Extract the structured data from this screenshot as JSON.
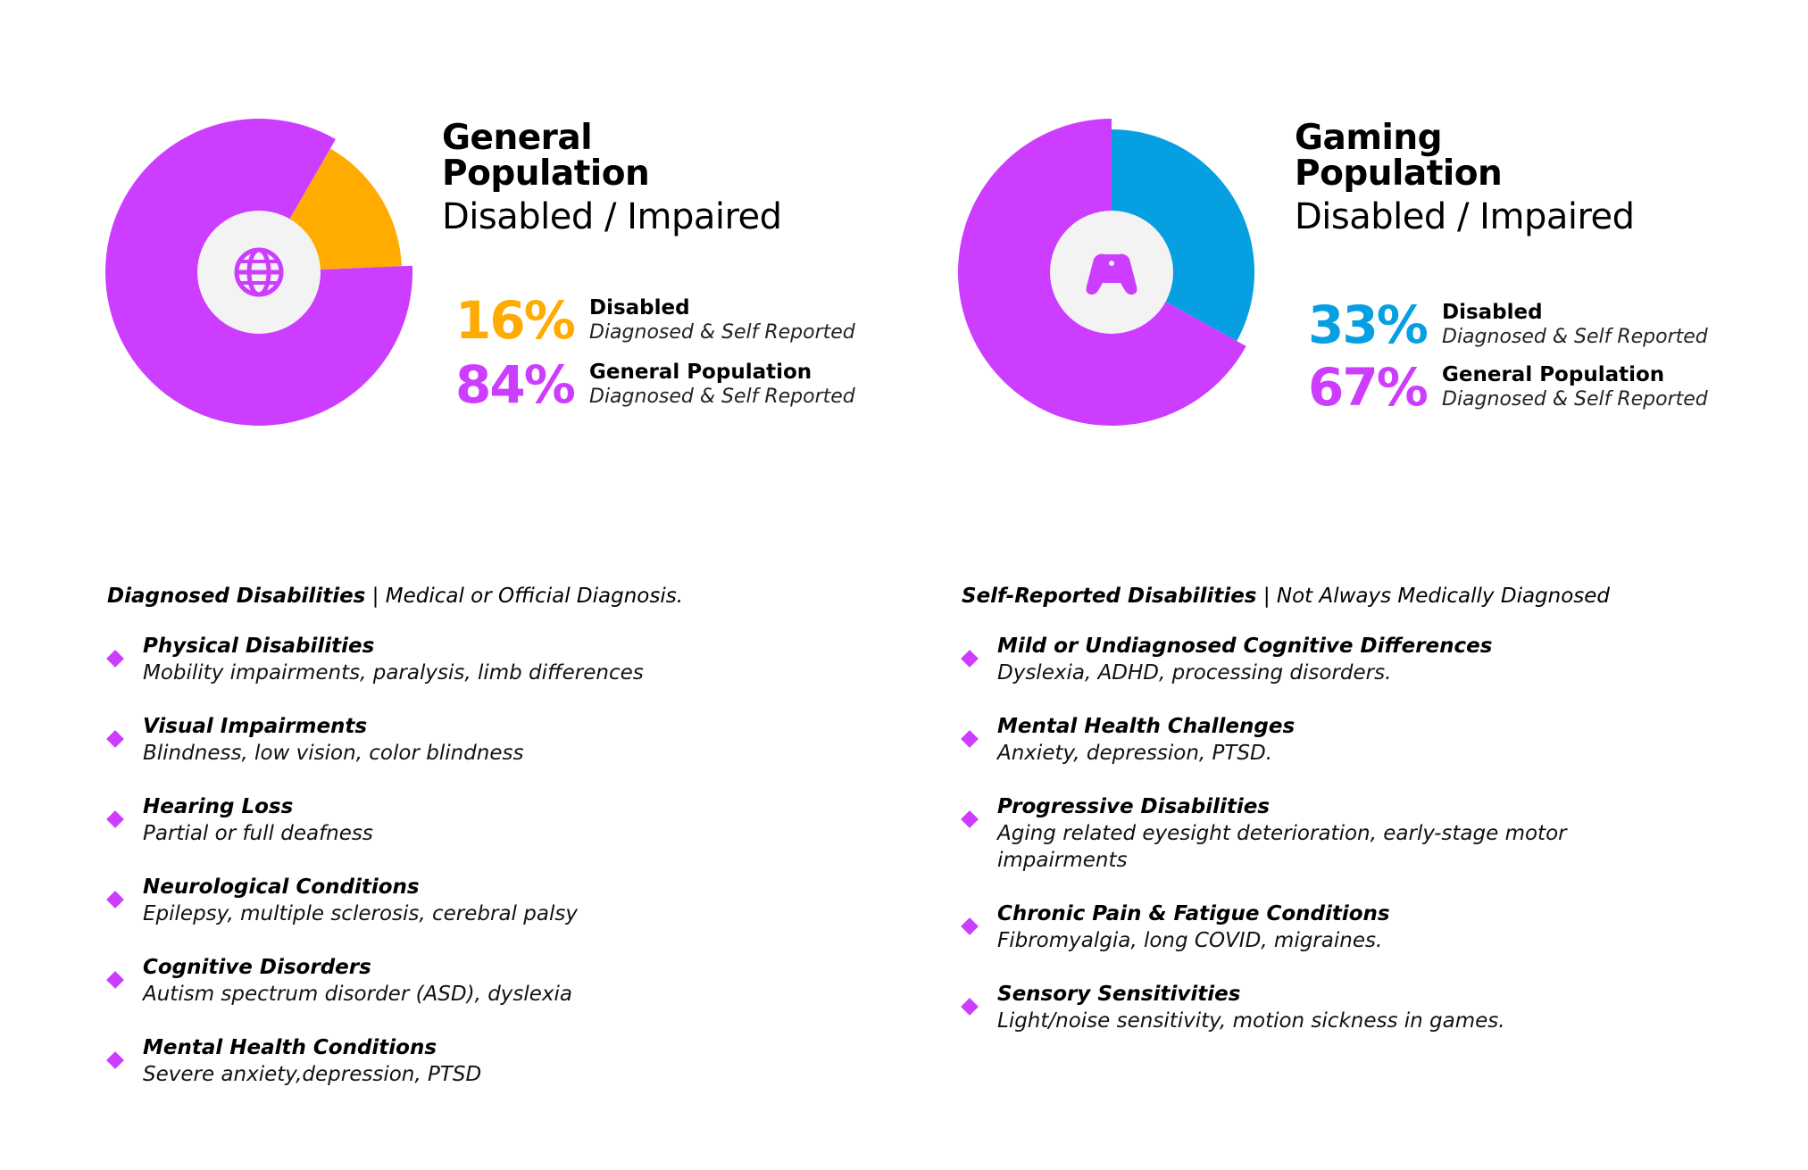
{
  "colors": {
    "purple": "#cc3dff",
    "orange": "#ffab00",
    "blue": "#06a0e2",
    "center": "#f3f3f3"
  },
  "chart_data": [
    {
      "type": "pie",
      "title_line1": "General",
      "title_line2": "Population",
      "subtitle": "Disabled / Impaired",
      "icon": "globe-icon",
      "categories": [
        "Disabled",
        "General Population"
      ],
      "values": [
        16,
        84
      ],
      "pct_labels": [
        "16%",
        "84%"
      ],
      "descriptions": [
        "Diagnosed & Self Reported",
        "Diagnosed & Self Reported"
      ],
      "colors": [
        "#ffab00",
        "#cc3dff"
      ]
    },
    {
      "type": "pie",
      "title_line1": "Gaming",
      "title_line2": "Population",
      "subtitle": "Disabled / Impaired",
      "icon": "gamepad-icon",
      "categories": [
        "Disabled",
        "General Population"
      ],
      "values": [
        33,
        67
      ],
      "pct_labels": [
        "33%",
        "67%"
      ],
      "descriptions": [
        "Diagnosed & Self Reported",
        "Diagnosed & Self Reported"
      ],
      "colors": [
        "#06a0e2",
        "#cc3dff"
      ]
    }
  ],
  "lists": {
    "diagnosed": {
      "header_bold": "Diagnosed Disabilities",
      "header_rest": " | Medical or Official Diagnosis.",
      "items": [
        {
          "title": "Physical Disabilities",
          "desc": "Mobility impairments, paralysis, limb differences"
        },
        {
          "title": "Visual Impairments",
          "desc": "Blindness, low vision, color blindness"
        },
        {
          "title": "Hearing Loss",
          "desc": "Partial or full deafness"
        },
        {
          "title": "Neurological Conditions",
          "desc": "Epilepsy, multiple sclerosis, cerebral palsy"
        },
        {
          "title": "Cognitive Disorders",
          "desc": "Autism spectrum disorder (ASD), dyslexia"
        },
        {
          "title": "Mental Health Conditions",
          "desc": "Severe anxiety,depression, PTSD"
        }
      ]
    },
    "self_reported": {
      "header_bold": "Self-Reported Disabilities",
      "header_rest": " | Not Always Medically Diagnosed",
      "items": [
        {
          "title": "Mild or Undiagnosed Cognitive Differences",
          "desc": "Dyslexia, ADHD, processing disorders."
        },
        {
          "title": "Mental Health Challenges",
          "desc": "Anxiety, depression, PTSD."
        },
        {
          "title": "Progressive Disabilities",
          "desc": "Aging related eyesight deterioration, early-stage motor impairments"
        },
        {
          "title": "Chronic Pain & Fatigue Conditions",
          "desc": "Fibromyalgia, long COVID, migraines."
        },
        {
          "title": "Sensory Sensitivities",
          "desc": "Light/noise sensitivity, motion sickness in games."
        }
      ]
    }
  }
}
